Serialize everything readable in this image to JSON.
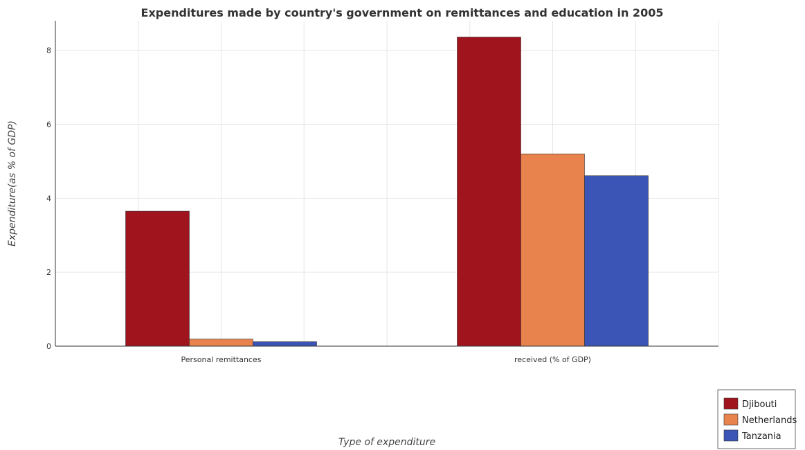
{
  "chart_data": {
    "type": "bar",
    "title": "Expenditures made by country's government on remittances and education in 2005",
    "xlabel": "Type of expenditure",
    "ylabel": "Expenditure(as % of GDP)",
    "categories": [
      "Personal remittances",
      " received (% of GDP)"
    ],
    "ylim": [
      0,
      8.8
    ],
    "yticks": [
      0,
      2,
      4,
      6,
      8
    ],
    "grid": true,
    "legend_position": "bottom-right",
    "series": [
      {
        "name": "Djibouti",
        "color": "#a0141e",
        "values": [
          3.65,
          8.36
        ]
      },
      {
        "name": "Netherlands",
        "color": "#e8834e",
        "values": [
          0.19,
          5.2
        ]
      },
      {
        "name": "Tanzania",
        "color": "#3a55b5",
        "values": [
          0.12,
          4.61
        ]
      }
    ]
  }
}
